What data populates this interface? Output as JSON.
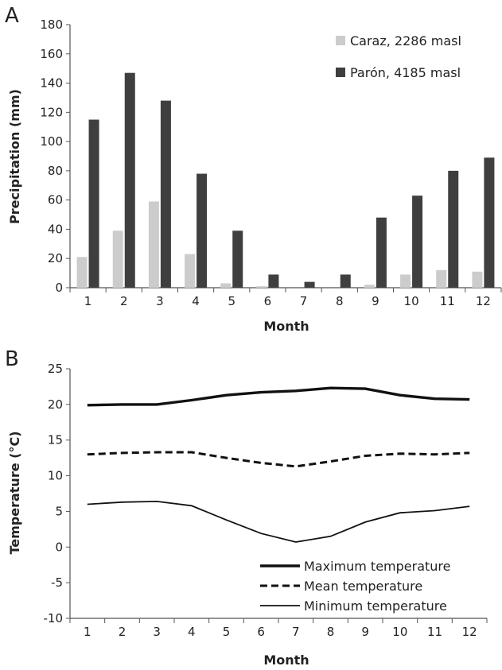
{
  "chart_data": [
    {
      "panel_label": "A",
      "type": "bar",
      "xlabel": "Month",
      "ylabel": "Precipitation (mm)",
      "ylim": [
        0,
        180
      ],
      "y_ticks": [
        0,
        20,
        40,
        60,
        80,
        100,
        120,
        140,
        160,
        180
      ],
      "categories": [
        "1",
        "2",
        "3",
        "4",
        "5",
        "6",
        "7",
        "8",
        "9",
        "10",
        "11",
        "12"
      ],
      "series": [
        {
          "name": "Caraz, 2286 masl",
          "color": "#cccccc",
          "values": [
            21,
            39,
            59,
            23,
            3,
            1,
            0,
            0,
            2,
            9,
            12,
            11
          ]
        },
        {
          "name": "Parón, 4185 masl",
          "color": "#3f3f3f",
          "values": [
            115,
            147,
            128,
            78,
            39,
            9,
            4,
            9,
            48,
            63,
            80,
            89
          ]
        }
      ],
      "legend_position": "top-right",
      "grid": false
    },
    {
      "panel_label": "B",
      "type": "line",
      "xlabel": "Month",
      "ylabel": "Temperature (°C)",
      "ylim": [
        -10,
        25
      ],
      "y_ticks": [
        -10,
        -5,
        0,
        5,
        10,
        15,
        20,
        25
      ],
      "categories": [
        "1",
        "2",
        "3",
        "4",
        "5",
        "6",
        "7",
        "8",
        "9",
        "10",
        "11",
        "12"
      ],
      "series": [
        {
          "name": "Maximum temperature",
          "style": "thick",
          "values": [
            19.9,
            20.0,
            20.0,
            20.6,
            21.3,
            21.7,
            21.9,
            22.3,
            22.2,
            21.3,
            20.8,
            20.7
          ]
        },
        {
          "name": "Mean temperature",
          "style": "dashed",
          "values": [
            13.0,
            13.2,
            13.3,
            13.3,
            12.5,
            11.8,
            11.3,
            12.0,
            12.8,
            13.1,
            13.0,
            13.2
          ]
        },
        {
          "name": "Minimum temperature",
          "style": "thin",
          "values": [
            6.0,
            6.3,
            6.4,
            5.8,
            3.8,
            1.9,
            0.7,
            1.5,
            3.5,
            4.8,
            5.1,
            5.7
          ]
        }
      ],
      "legend_position": "bottom-right",
      "grid": false
    }
  ]
}
